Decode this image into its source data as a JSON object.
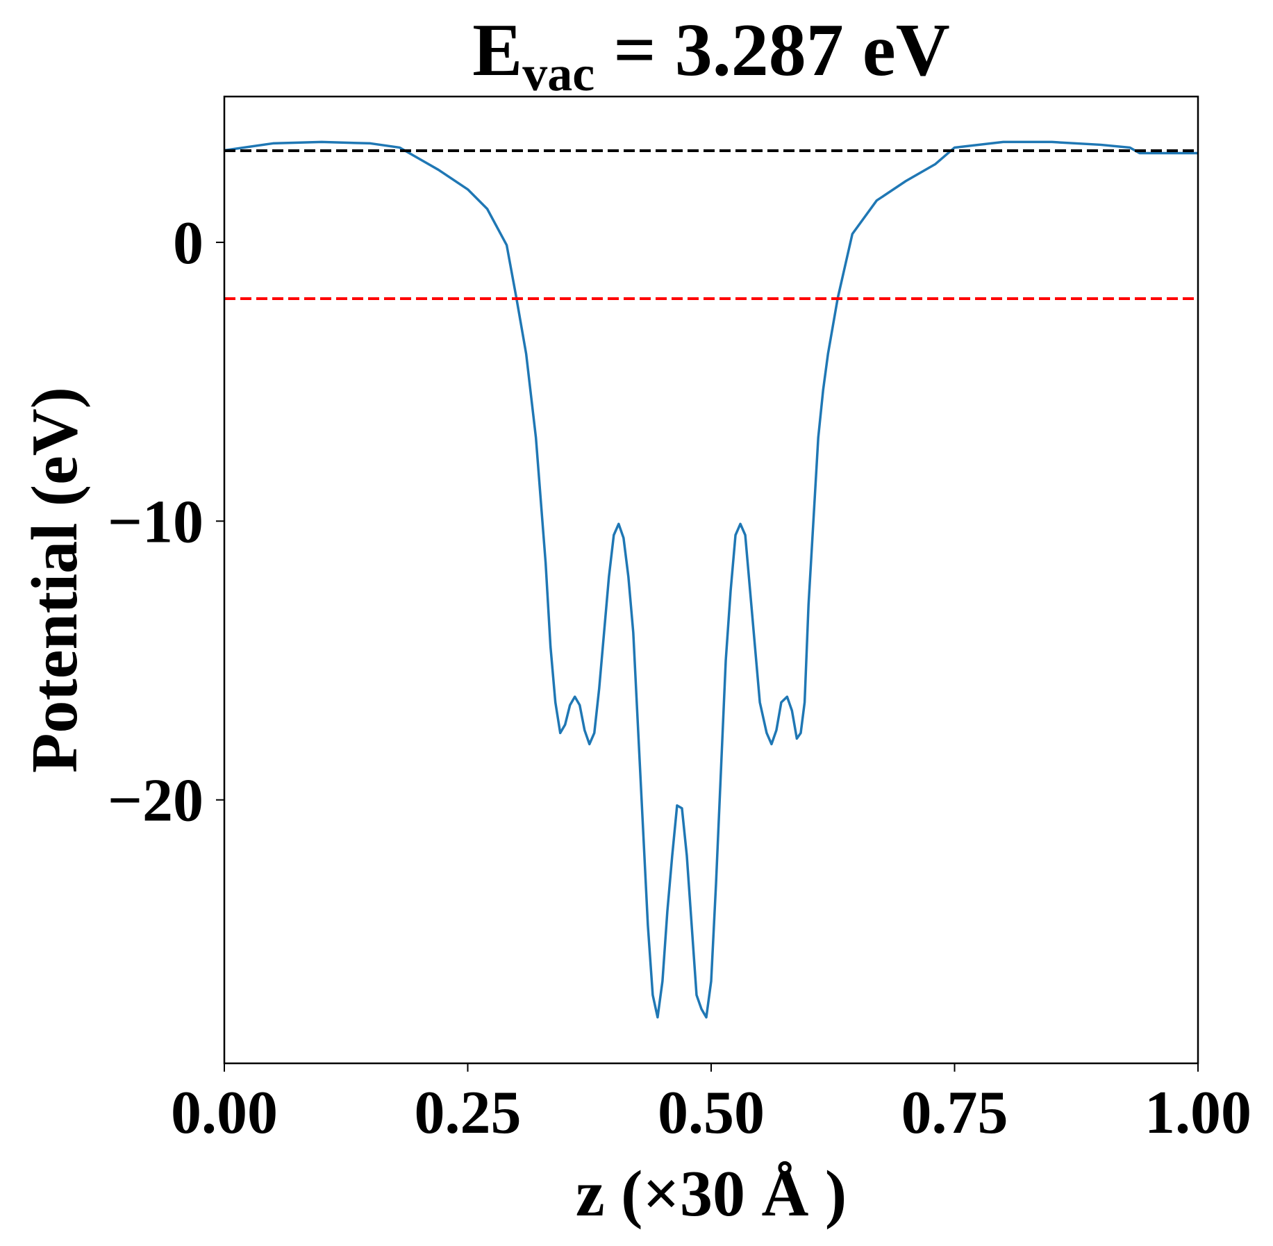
{
  "chart_data": {
    "type": "line",
    "title": {
      "main": "E",
      "sub": "vac",
      "rest": " = 3.287 eV"
    },
    "x_label": "z (×30 Å )",
    "y_label": "Potential (eV)",
    "xlim": [
      0,
      1
    ],
    "ylim": [
      -29.45,
      5.23
    ],
    "xticks": [
      {
        "value": 0,
        "label": "0.00"
      },
      {
        "value": 0.25,
        "label": "0.25"
      },
      {
        "value": 0.5,
        "label": "0.50"
      },
      {
        "value": 0.75,
        "label": "0.75"
      },
      {
        "value": 1,
        "label": "1.00"
      }
    ],
    "yticks": [
      0,
      {
        "value": -10,
        "label": "−10"
      },
      {
        "value": -20,
        "label": "−20"
      }
    ],
    "hlines": [
      {
        "value": 3.287,
        "color": "#000000"
      },
      {
        "value": -2.02,
        "color": "#ff0000"
      }
    ],
    "series": [
      {
        "color": "#1f77b4",
        "x": [
          0,
          0.05,
          0.1,
          0.15,
          0.18,
          0.2,
          0.22,
          0.25,
          0.27,
          0.29,
          0.3,
          0.31,
          0.32,
          0.33,
          0.335,
          0.34,
          0.345,
          0.35,
          0.355,
          0.36,
          0.365,
          0.37,
          0.375,
          0.38,
          0.385,
          0.39,
          0.395,
          0.4,
          0.405,
          0.41,
          0.415,
          0.42,
          0.425,
          0.43,
          0.435,
          0.44,
          0.445,
          0.45,
          0.455,
          0.46,
          0.465,
          0.47,
          0.475,
          0.48,
          0.485,
          0.49,
          0.495,
          0.5,
          0.505,
          0.51,
          0.515,
          0.52,
          0.525,
          0.53,
          0.535,
          0.54,
          0.545,
          0.55,
          0.557,
          0.562,
          0.567,
          0.572,
          0.578,
          0.583,
          0.588,
          0.592,
          0.596,
          0.6,
          0.605,
          0.61,
          0.615,
          0.62,
          0.63,
          0.645,
          0.67,
          0.7,
          0.73,
          0.75,
          0.8,
          0.85,
          0.9,
          0.93,
          0.94,
          0.97,
          1.0
        ],
        "values": [
          3.3,
          3.55,
          3.6,
          3.55,
          3.4,
          3.0,
          2.6,
          1.9,
          1.2,
          -0.1,
          -2.0,
          -4.0,
          -7.0,
          -11.5,
          -14.5,
          -16.5,
          -17.6,
          -17.3,
          -16.6,
          -16.3,
          -16.6,
          -17.5,
          -18.0,
          -17.6,
          -16.0,
          -14.0,
          -12.0,
          -10.5,
          -10.1,
          -10.6,
          -12.0,
          -14.0,
          -17.5,
          -21.0,
          -24.5,
          -27.0,
          -27.8,
          -26.5,
          -24.0,
          -22.0,
          -20.2,
          -20.3,
          -22.0,
          -24.5,
          -27.0,
          -27.5,
          -27.8,
          -26.5,
          -23.0,
          -19.0,
          -15.0,
          -12.5,
          -10.5,
          -10.1,
          -10.5,
          -12.5,
          -14.5,
          -16.5,
          -17.6,
          -18.0,
          -17.5,
          -16.5,
          -16.3,
          -16.8,
          -17.8,
          -17.6,
          -16.5,
          -13.0,
          -10.0,
          -7.0,
          -5.3,
          -4.0,
          -2.0,
          0.3,
          1.5,
          2.2,
          2.8,
          3.4,
          3.6,
          3.6,
          3.5,
          3.4,
          3.2,
          3.2,
          3.2
        ]
      }
    ]
  }
}
